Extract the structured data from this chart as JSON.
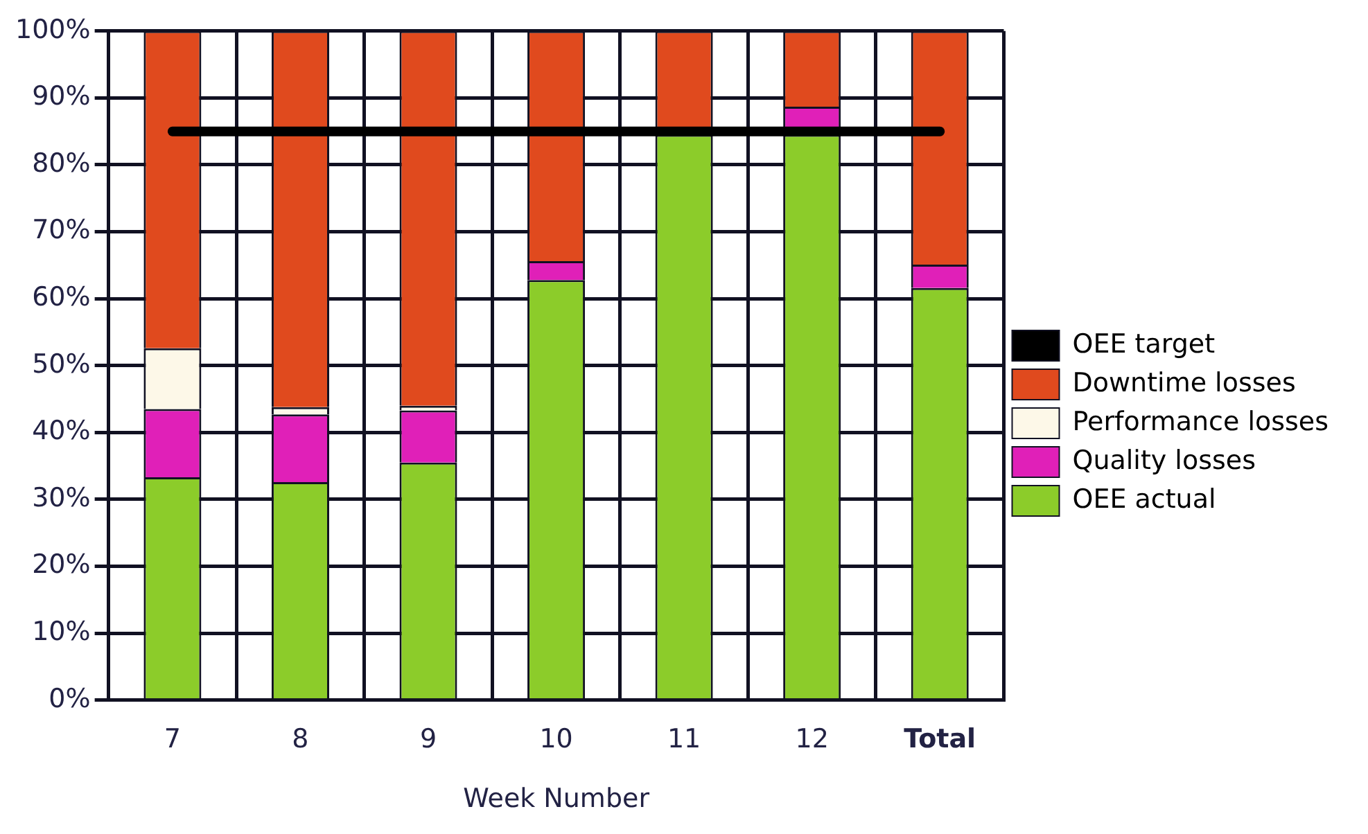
{
  "chart_data": {
    "type": "bar",
    "stacked": true,
    "xlabel": "Week Number",
    "categories": [
      "7",
      "8",
      "9",
      "10",
      "11",
      "12",
      "Total"
    ],
    "series": [
      {
        "name": "OEE actual",
        "color": "#8ccc2a",
        "values": [
          33.3,
          32.6,
          35.5,
          62.8,
          84.5,
          84.5,
          61.6
        ]
      },
      {
        "name": "Quality losses",
        "color": "#e020b8",
        "values": [
          10.2,
          10.1,
          7.8,
          2.8,
          0,
          4.2,
          3.5
        ]
      },
      {
        "name": "Performance losses",
        "color": "#fdf8e8",
        "values": [
          9.1,
          1.1,
          0.7,
          0,
          0,
          0,
          0
        ]
      },
      {
        "name": "Downtime losses",
        "color": "#e04a1e",
        "values": [
          47.4,
          56.2,
          56.0,
          34.4,
          15.5,
          11.3,
          34.9
        ]
      },
      {
        "name": "OEE target",
        "type": "line",
        "color": "#000000",
        "values": [
          85,
          85,
          85,
          85,
          85,
          85,
          85
        ]
      }
    ],
    "ylim": [
      0,
      100
    ],
    "yticks": [
      {
        "value": 0,
        "label": "0%"
      },
      {
        "value": 10,
        "label": "10%"
      },
      {
        "value": 20,
        "label": "20%"
      },
      {
        "value": 30,
        "label": "30%"
      },
      {
        "value": 40,
        "label": "40%"
      },
      {
        "value": 50,
        "label": "50%"
      },
      {
        "value": 60,
        "label": "60%"
      },
      {
        "value": 70,
        "label": "70%"
      },
      {
        "value": 80,
        "label": "80%"
      },
      {
        "value": 90,
        "label": "90%"
      },
      {
        "value": 100,
        "label": "100%"
      }
    ],
    "grid": true,
    "legend": "right",
    "marker": "none"
  }
}
